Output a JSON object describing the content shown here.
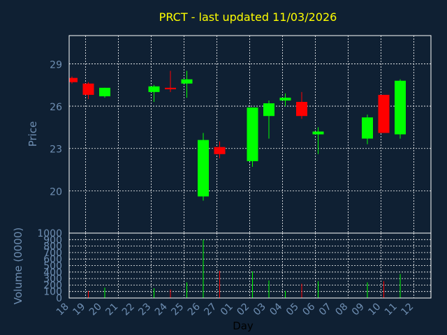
{
  "chart_data": {
    "type": "candlestick",
    "title": "PRCT - last updated 11/03/2026",
    "ylabel": "Price",
    "volume_label": "Volume (0000)",
    "xlabel": "Day",
    "price_ylim": [
      17,
      31
    ],
    "price_ticks": [
      20,
      23,
      26,
      29
    ],
    "volume_ylim": [
      0,
      1000
    ],
    "volume_ticks": [
      0,
      100,
      200,
      300,
      400,
      500,
      600,
      700,
      800,
      900,
      1000
    ],
    "grid": true,
    "x_labels": [
      "18",
      "19",
      "20",
      "21",
      "22",
      "23",
      "24",
      "25",
      "26",
      "27",
      "01",
      "02",
      "03",
      "04",
      "05",
      "06",
      "07",
      "08",
      "09",
      "10",
      "11",
      "12"
    ],
    "candles": [
      {
        "x": "18",
        "open": 28.0,
        "high": 28.1,
        "low": 27.6,
        "close": 27.7,
        "volume": 0
      },
      {
        "x": "19",
        "open": 27.6,
        "high": 27.7,
        "low": 26.5,
        "close": 26.8,
        "volume": 110
      },
      {
        "x": "20",
        "open": 26.7,
        "high": 27.3,
        "low": 26.6,
        "close": 27.3,
        "volume": 160
      },
      {
        "x": "23",
        "open": 27.0,
        "high": 27.5,
        "low": 26.3,
        "close": 27.4,
        "volume": 150
      },
      {
        "x": "24",
        "open": 27.3,
        "high": 28.5,
        "low": 27.0,
        "close": 27.2,
        "volume": 130
      },
      {
        "x": "25",
        "open": 27.6,
        "high": 28.5,
        "low": 26.6,
        "close": 27.9,
        "volume": 240
      },
      {
        "x": "26",
        "open": 19.6,
        "high": 24.1,
        "low": 19.3,
        "close": 23.6,
        "volume": 900
      },
      {
        "x": "27",
        "open": 23.1,
        "high": 23.5,
        "low": 22.3,
        "close": 22.6,
        "volume": 420
      },
      {
        "x": "02",
        "open": 22.1,
        "high": 25.9,
        "low": 21.7,
        "close": 25.9,
        "volume": 410
      },
      {
        "x": "03",
        "open": 25.3,
        "high": 26.4,
        "low": 23.7,
        "close": 26.2,
        "volume": 270
      },
      {
        "x": "04",
        "open": 26.4,
        "high": 26.9,
        "low": 26.0,
        "close": 26.6,
        "volume": 110
      },
      {
        "x": "05",
        "open": 26.3,
        "high": 27.0,
        "low": 25.1,
        "close": 25.3,
        "volume": 220
      },
      {
        "x": "06",
        "open": 24.0,
        "high": 24.5,
        "low": 22.6,
        "close": 24.2,
        "volume": 260
      },
      {
        "x": "09",
        "open": 23.7,
        "high": 25.4,
        "low": 23.3,
        "close": 25.2,
        "volume": 240
      },
      {
        "x": "10",
        "open": 26.8,
        "high": 26.8,
        "low": 24.1,
        "close": 24.1,
        "volume": 260
      },
      {
        "x": "11",
        "open": 24.0,
        "high": 27.9,
        "low": 23.7,
        "close": 27.8,
        "volume": 370
      }
    ],
    "colors": {
      "background": "#0f2033",
      "up": "#00ff00",
      "down": "#ff0000",
      "grid": "#ffffff",
      "axis": "#ffffff",
      "text": "#6f8fb3",
      "title": "#ffff00"
    }
  }
}
